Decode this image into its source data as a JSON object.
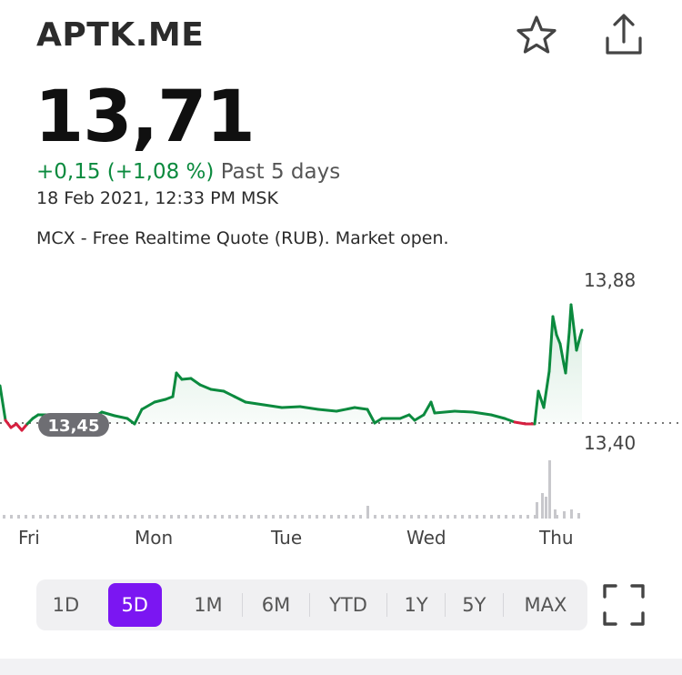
{
  "header": {
    "ticker": "APTK.ME",
    "icons": {
      "favorite": "star-icon",
      "share": "share-icon"
    }
  },
  "quote": {
    "price": "13,71",
    "change": "+0,15 (+1,08 %)",
    "period": "Past 5 days",
    "timestamp": "18 Feb 2021, 12:33 PM MSK",
    "source": "MCX - Free Realtime Quote (RUB). Market open."
  },
  "chart": {
    "y_high_label": "13,88",
    "y_low_label": "13,40",
    "reference_label": "13,45",
    "days": [
      "Fri",
      "Mon",
      "Tue",
      "Wed",
      "Thu"
    ],
    "colors": {
      "up": "#0b8a3e",
      "down": "#d61f3f",
      "volume": "#c8c8cc"
    }
  },
  "chart_data": {
    "type": "line",
    "x": [
      "Fri",
      "Mon",
      "Tue",
      "Wed",
      "Thu"
    ],
    "values": [
      13.46,
      13.53,
      13.49,
      13.47,
      13.71
    ],
    "high": 13.88,
    "low": 13.4,
    "reference": 13.45,
    "xlabel": "",
    "ylabel": ""
  },
  "range": {
    "options": [
      "1D",
      "5D",
      "1M",
      "6M",
      "YTD",
      "1Y",
      "5Y",
      "MAX"
    ],
    "selected": "5D"
  },
  "controls": {
    "fullscreen": "fullscreen-icon"
  }
}
